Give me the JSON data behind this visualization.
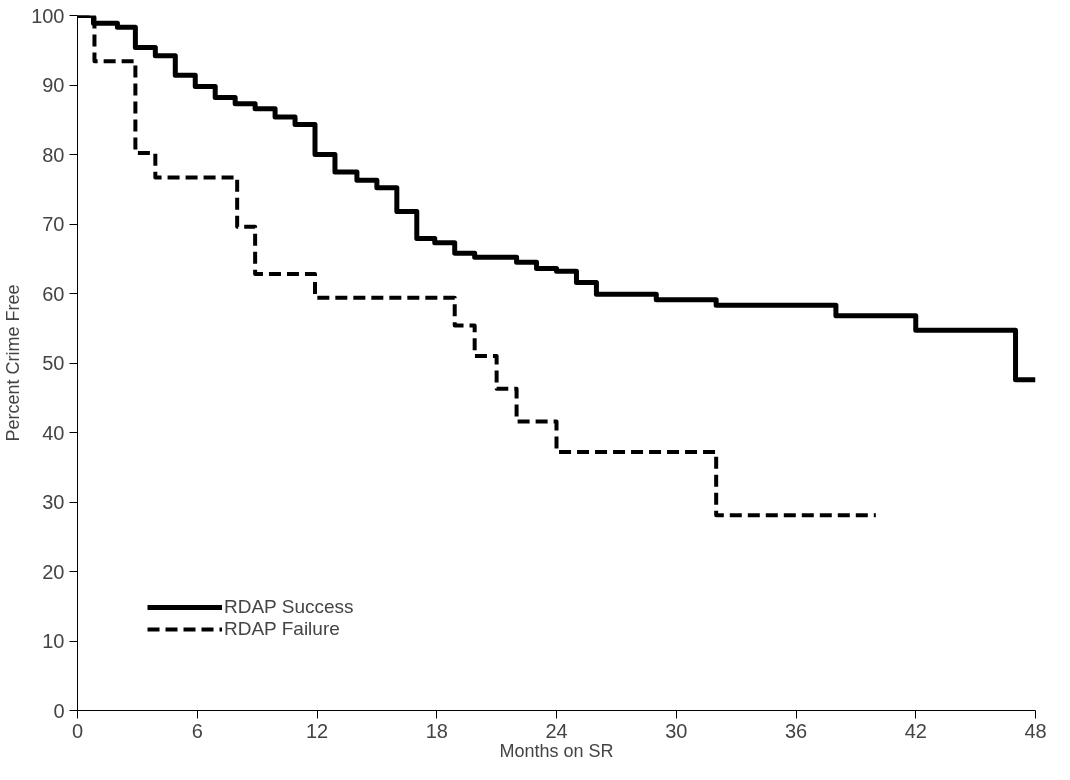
{
  "chart_data": {
    "type": "step",
    "xlabel": "Months on SR",
    "ylabel": "Percent Crime Free",
    "xlim": [
      0,
      48
    ],
    "ylim": [
      0,
      100
    ],
    "xticks": [
      0,
      6,
      12,
      18,
      24,
      30,
      36,
      42,
      48
    ],
    "yticks": [
      0,
      10,
      20,
      30,
      40,
      50,
      60,
      70,
      80,
      90,
      100
    ],
    "grid": false,
    "legend": "bottom left",
    "marker": "none",
    "series": [
      {
        "name": "RDAP Success",
        "color": "#000000",
        "line_style": "solid",
        "x": [
          0,
          0.8,
          2,
          2.9,
          3.9,
          4.9,
          5.9,
          6.9,
          7.9,
          8.9,
          9.9,
          10.9,
          11.9,
          12.9,
          14,
          15,
          16,
          17,
          17.9,
          18.9,
          19.9,
          22,
          23,
          24,
          25,
          26,
          29,
          32,
          38,
          42,
          47,
          48
        ],
        "values": [
          100,
          98.9,
          98.3,
          95.4,
          94.2,
          91.4,
          89.8,
          88.2,
          87.3,
          86.6,
          85.4,
          84.3,
          80,
          77.5,
          76.3,
          75.2,
          71.8,
          67.9,
          67.3,
          65.8,
          65.2,
          64.5,
          63.6,
          63.2,
          61.6,
          59.9,
          59.1,
          58.3,
          56.8,
          54.7,
          47.6,
          47.6
        ]
      },
      {
        "name": "RDAP Failure",
        "color": "#000000",
        "line_style": "dashed",
        "x": [
          0,
          0.85,
          2.9,
          3.9,
          8,
          8.9,
          11.9,
          18.9,
          19.9,
          21,
          22,
          24,
          32,
          40
        ],
        "values": [
          100,
          93.4,
          80.2,
          76.7,
          69.6,
          62.8,
          59.4,
          55.4,
          51,
          46.3,
          41.6,
          37.2,
          28.1,
          28.1
        ]
      }
    ]
  }
}
